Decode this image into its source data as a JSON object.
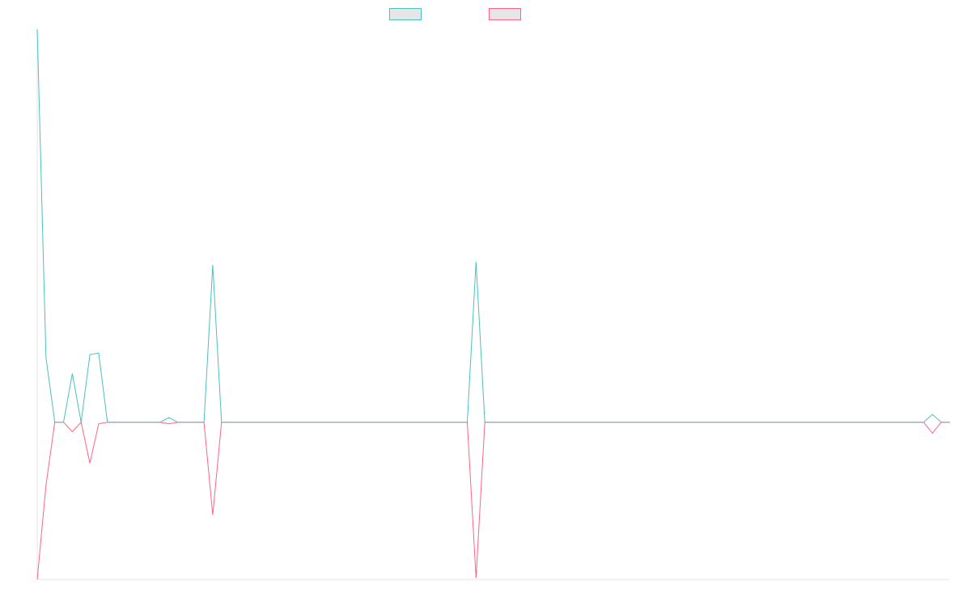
{
  "chart_data": {
    "type": "line",
    "title": "",
    "xlabel": "",
    "ylabel": "",
    "x": [
      0,
      1,
      2,
      3,
      4,
      5,
      6,
      7,
      8,
      9,
      10,
      11,
      12,
      13,
      14,
      15,
      16,
      17,
      18,
      19,
      20,
      21,
      22,
      23,
      24,
      25,
      26,
      27,
      28,
      29,
      30,
      31,
      32,
      33,
      34,
      35,
      36,
      37,
      38,
      39,
      40,
      41,
      42,
      43,
      44,
      45,
      46,
      47,
      48,
      49,
      50,
      51,
      52,
      53,
      54,
      55,
      56,
      57,
      58,
      59,
      60,
      61,
      62,
      63,
      64,
      65,
      66,
      67,
      68,
      69,
      70,
      71,
      72,
      73,
      74,
      75,
      76,
      77,
      78,
      79,
      80,
      81,
      82,
      83,
      84,
      85,
      86,
      87,
      88,
      89,
      90,
      91,
      92,
      93,
      94,
      95,
      96,
      97,
      98,
      99,
      100,
      101,
      102,
      103,
      104
    ],
    "ylim": [
      -100,
      250
    ],
    "grid": false,
    "legend": "top-center",
    "series": [
      {
        "color": "#4bc0c0",
        "values": [
          250,
          41,
          0,
          0,
          31,
          0,
          43,
          44,
          0,
          0,
          0,
          0,
          0,
          0,
          0,
          3,
          0,
          0,
          0,
          0,
          100,
          0,
          0,
          0,
          0,
          0,
          0,
          0,
          0,
          0,
          0,
          0,
          0,
          0,
          0,
          0,
          0,
          0,
          0,
          0,
          0,
          0,
          0,
          0,
          0,
          0,
          0,
          0,
          0,
          0,
          102,
          0,
          0,
          0,
          0,
          0,
          0,
          0,
          0,
          0,
          0,
          0,
          0,
          0,
          0,
          0,
          0,
          0,
          0,
          0,
          0,
          0,
          0,
          0,
          0,
          0,
          0,
          0,
          0,
          0,
          0,
          0,
          0,
          0,
          0,
          0,
          0,
          0,
          0,
          0,
          0,
          0,
          0,
          0,
          0,
          0,
          0,
          0,
          0,
          0,
          0,
          0,
          5,
          0,
          0
        ]
      },
      {
        "color": "#ff6384",
        "values": [
          -100,
          -40,
          0,
          0,
          -6,
          0,
          -26,
          -1,
          0,
          0,
          0,
          0,
          0,
          0,
          0,
          -1,
          0,
          0,
          0,
          0,
          -59,
          0,
          0,
          0,
          0,
          0,
          0,
          0,
          0,
          0,
          0,
          0,
          0,
          0,
          0,
          0,
          0,
          0,
          0,
          0,
          0,
          0,
          0,
          0,
          0,
          0,
          0,
          0,
          0,
          0,
          -99,
          0,
          0,
          0,
          0,
          0,
          0,
          0,
          0,
          0,
          0,
          0,
          0,
          0,
          0,
          0,
          0,
          0,
          0,
          0,
          0,
          0,
          0,
          0,
          0,
          0,
          0,
          0,
          0,
          0,
          0,
          0,
          0,
          0,
          0,
          0,
          0,
          0,
          0,
          0,
          0,
          0,
          0,
          0,
          0,
          0,
          0,
          0,
          0,
          0,
          0,
          0,
          -7,
          0,
          0
        ]
      }
    ]
  }
}
